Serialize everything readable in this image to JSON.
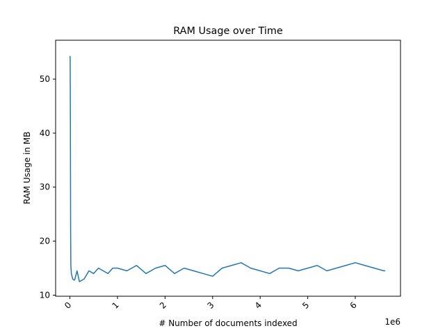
{
  "chart_data": {
    "type": "line",
    "title": "RAM Usage over Time",
    "xlabel": "# Number of documents indexed",
    "ylabel": "RAM Usage in MB",
    "x_scale_label": "1e6",
    "x_scale_factor": 1000000,
    "xlim": [
      -300000,
      6950000
    ],
    "ylim": [
      9.8,
      57.2
    ],
    "x_ticks": [
      0,
      1000000,
      2000000,
      3000000,
      4000000,
      5000000,
      6000000
    ],
    "x_tick_labels": [
      "0",
      "1",
      "2",
      "3",
      "4",
      "5",
      "6"
    ],
    "y_ticks": [
      10,
      20,
      30,
      40,
      50
    ],
    "y_tick_labels": [
      "10",
      "20",
      "30",
      "40",
      "50"
    ],
    "grid": false,
    "legend": "none",
    "series": [
      {
        "color": "#1f77b4",
        "x": [
          0,
          5000,
          10000,
          15000,
          20000,
          30000,
          45000,
          60000,
          80000,
          100000,
          150000,
          200000,
          300000,
          400000,
          500000,
          600000,
          700000,
          800000,
          900000,
          1000000,
          1200000,
          1400000,
          1600000,
          1800000,
          2000000,
          2200000,
          2400000,
          2600000,
          2800000,
          3000000,
          3200000,
          3400000,
          3600000,
          3800000,
          4000000,
          4200000,
          4400000,
          4600000,
          4800000,
          5000000,
          5200000,
          5400000,
          5600000,
          5800000,
          6000000,
          6200000,
          6400000,
          6600000,
          6630000
        ],
        "y": [
          54.3,
          54.0,
          44.0,
          22.0,
          15.5,
          14.0,
          13.5,
          13.0,
          12.8,
          12.8,
          14.5,
          12.5,
          13.0,
          14.5,
          14.0,
          15.0,
          14.5,
          14.0,
          15.0,
          15.0,
          14.5,
          15.5,
          14.0,
          15.0,
          15.5,
          14.0,
          15.0,
          14.5,
          14.0,
          13.5,
          15.0,
          15.5,
          16.0,
          15.0,
          14.5,
          14.0,
          15.0,
          15.0,
          14.5,
          15.0,
          15.5,
          14.5,
          15.0,
          15.5,
          16.0,
          15.5,
          15.0,
          14.5,
          14.5
        ]
      }
    ]
  }
}
